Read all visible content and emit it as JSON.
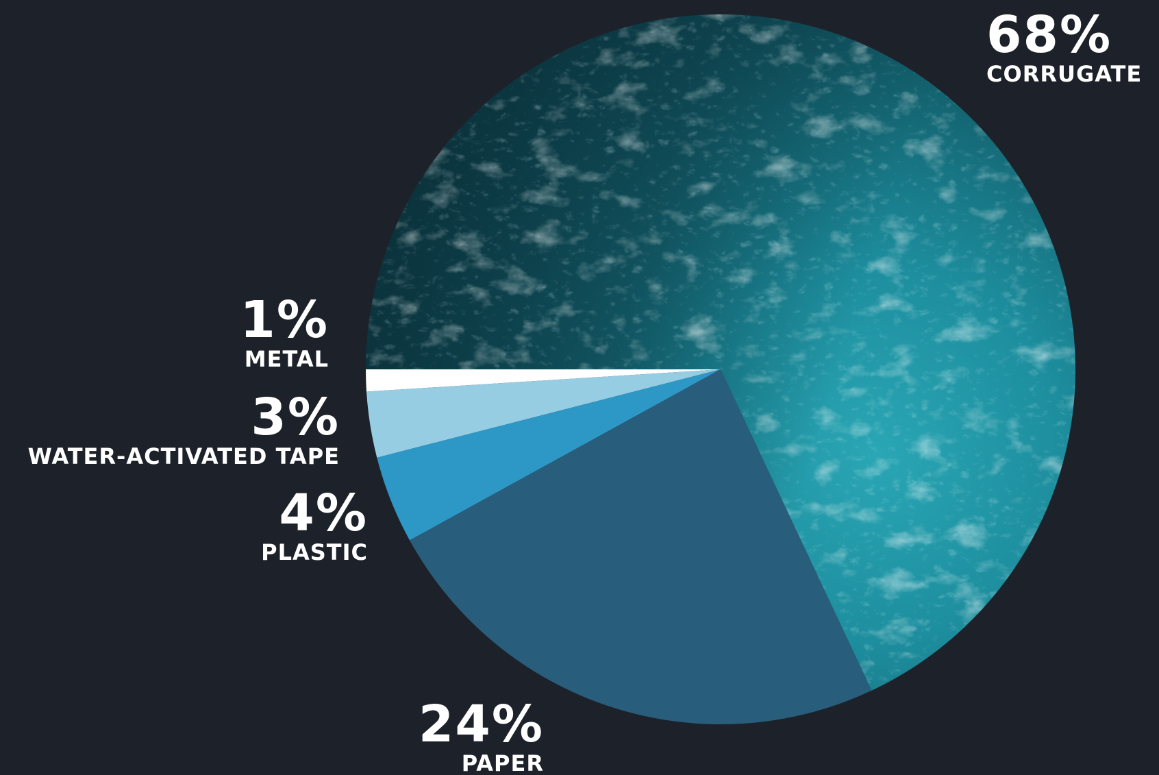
{
  "chart_data": {
    "type": "pie",
    "title": "",
    "slices": [
      {
        "label": "CORRUGATE",
        "value": 68,
        "value_label": "68%",
        "color": "#1a7f8e",
        "fill": "ocean-texture"
      },
      {
        "label": "PAPER",
        "value": 24,
        "value_label": "24%",
        "color": "#285d7b"
      },
      {
        "label": "PLASTIC",
        "value": 4,
        "value_label": "4%",
        "color": "#2d97c6"
      },
      {
        "label": "WATER-ACTIVATED TAPE",
        "value": 3,
        "value_label": "3%",
        "color": "#96cde2"
      },
      {
        "label": "METAL",
        "value": 1,
        "value_label": "1%",
        "color": "#ffffff"
      }
    ],
    "start_angle_degrees": 180,
    "direction": "counterclockwise",
    "legend": "none",
    "background": "#1d222a"
  }
}
